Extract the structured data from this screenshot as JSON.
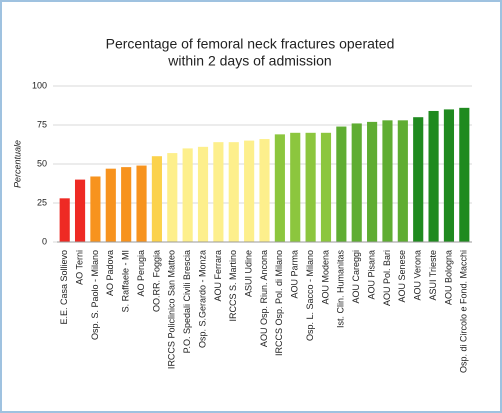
{
  "chart_data": {
    "type": "bar",
    "title": [
      "Percentage of femoral neck fractures operated",
      "within 2 days of admission"
    ],
    "y_label": "Percentuale",
    "categories": [
      "E.E. Casa Sollievo",
      "AO Terni",
      "Osp. S. Paolo - Milano",
      "AO Padova",
      "S. Raffaele - MI",
      "AO Perugia",
      "OO.RR. Foggia",
      "IRCCS Policlinico San Matteo",
      "P.O. Spedali Civili Brescia",
      "Osp. S.Gerardo - Monza",
      "AOU Ferrara",
      "IRCCS S. Martino",
      "ASUI Udine",
      "AOU Osp. Riun. Ancona",
      "IRCCS Osp. Pol. di Milano",
      "AOU Parma",
      "Osp. L. Sacco - Milano",
      "AOU Modena",
      "Ist. Clin. Humanitas",
      "AOU Careggi",
      "AOU Pisana",
      "AOU Pol. Bari",
      "AOU Senese",
      "AOU Verona",
      "ASUI Trieste",
      "AOU Bologna",
      "Osp. di Circolo e Fond. Macchi"
    ],
    "values": [
      28,
      40,
      42,
      47,
      48,
      49,
      55,
      57,
      60,
      61,
      64,
      64,
      65,
      66,
      69,
      70,
      70,
      70,
      74,
      76,
      77,
      78,
      78,
      80,
      84,
      85,
      86
    ],
    "colors": [
      "#ee2a24",
      "#ee2a24",
      "#f7931e",
      "#f7931e",
      "#f7931e",
      "#f7931e",
      "#fbd24c",
      "#fdef8c",
      "#fdef8c",
      "#fdef8c",
      "#fdef8c",
      "#fdef8c",
      "#fdef8c",
      "#fdef8c",
      "#8cc63e",
      "#8cc63e",
      "#8cc63e",
      "#8cc63e",
      "#5fad32",
      "#5fad32",
      "#5fad32",
      "#5fad32",
      "#5fad32",
      "#1f8a1f",
      "#1f8a1f",
      "#1f8a1f",
      "#1f8a1f"
    ],
    "ylim": [
      0,
      100
    ],
    "yticks": [
      0,
      25,
      50,
      75,
      100
    ],
    "grid": true
  }
}
